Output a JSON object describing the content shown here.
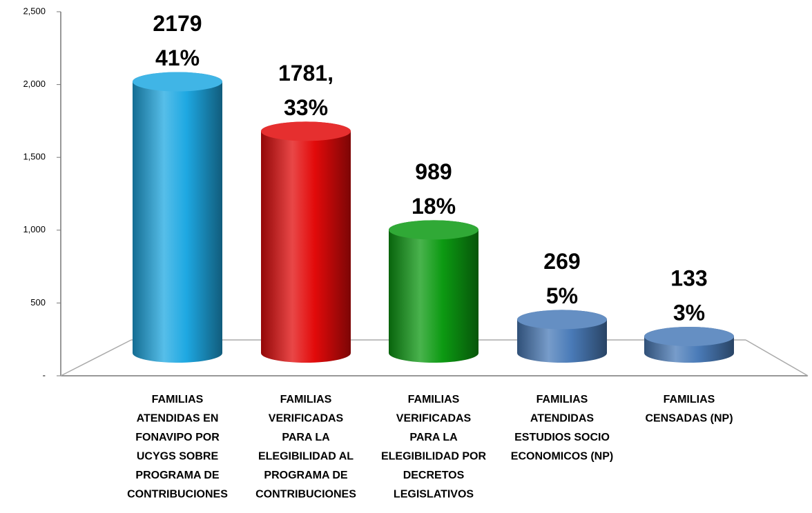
{
  "chart_data": {
    "type": "bar",
    "categories": [
      "FAMILIAS\nATENDIDAS EN\nFONAVIPO POR\nUCYGS SOBRE\nPROGRAMA DE\nCONTRIBUCIONES",
      "FAMILIAS\nVERIFICADAS\nPARA LA\nELEGIBILIDAD AL\nPROGRAMA DE\nCONTRIBUCIONES",
      "FAMILIAS\nVERIFICADAS\nPARA LA\nELEGIBILIDAD POR\nDECRETOS\nLEGISLATIVOS",
      "FAMILIAS\nATENDIDAS\nESTUDIOS SOCIO\nECONOMICOS (NP)",
      "FAMILIAS\nCENSADAS (NP)"
    ],
    "values": [
      2179,
      1781,
      989,
      269,
      133
    ],
    "value_labels": [
      "2179",
      "1781,",
      "989",
      "269",
      "133"
    ],
    "shares": [
      41,
      33,
      18,
      5,
      3
    ],
    "share_labels": [
      "41%",
      "33%",
      "18%",
      "5%",
      "3%"
    ],
    "colors": [
      "#1ea8e2",
      "#e20a0a",
      "#0c9a12",
      "#4a7bb8",
      "#4a7bb8"
    ],
    "ylim": [
      0,
      2500
    ],
    "yticks": [
      {
        "value": 0,
        "label": "-"
      },
      500,
      {
        "value": 1000,
        "label": "1,000"
      },
      {
        "value": 1500,
        "label": "1,500"
      },
      {
        "value": 2000,
        "label": "2,000"
      },
      {
        "value": 2500,
        "label": "2,500"
      }
    ]
  }
}
